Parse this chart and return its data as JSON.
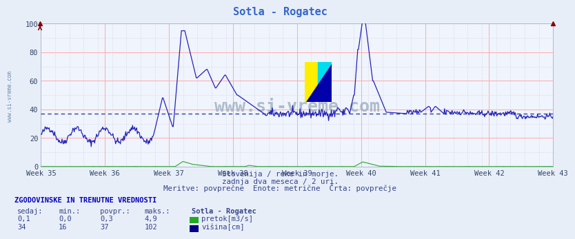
{
  "title": "Sotla - Rogatec",
  "title_color": "#3366cc",
  "bg_color": "#e8eef8",
  "plot_bg_color": "#f0f4fc",
  "grid_color_major": "#ffaaaa",
  "grid_color_minor": "#ccccdd",
  "line_color_visina": "#2222bb",
  "line_color_pretok": "#22aa22",
  "avg_line_color": "#2244aa",
  "avg_line_value": 37,
  "ylim": [
    0,
    100
  ],
  "weeks": [
    "Week 35",
    "Week 36",
    "Week 37",
    "Week 38",
    "Week 39",
    "Week 40",
    "Week 41",
    "Week 42",
    "Week 43"
  ],
  "subtitle1": "Slovenija / reke in morje.",
  "subtitle2": "zadnja dva meseca / 2 uri.",
  "subtitle3": "Meritve: povprečne  Enote: metrične  Črta: povprečje",
  "footer_title": "ZGODOVINSKE IN TRENUTNE VREDNOSTI",
  "col_sedaj": "sedaj:",
  "col_min": "min.:",
  "col_povpr": "povpr.:",
  "col_maks": "maks.:",
  "station": "Sotla - Rogatec",
  "pretok_sedaj": "0,1",
  "pretok_min": "0,0",
  "pretok_povpr": "0,3",
  "pretok_maks": "4,9",
  "visina_sedaj": "34",
  "visina_min": "16",
  "visina_povpr": "37",
  "visina_maks": "102",
  "pretok_label": "pretok[m3/s]",
  "visina_label": "višina[cm]",
  "pretok_color": "#22aa22",
  "visina_color": "#000088",
  "watermark": "www.si-vreme.com",
  "watermark_color": "#99aabb",
  "n_points": 756
}
